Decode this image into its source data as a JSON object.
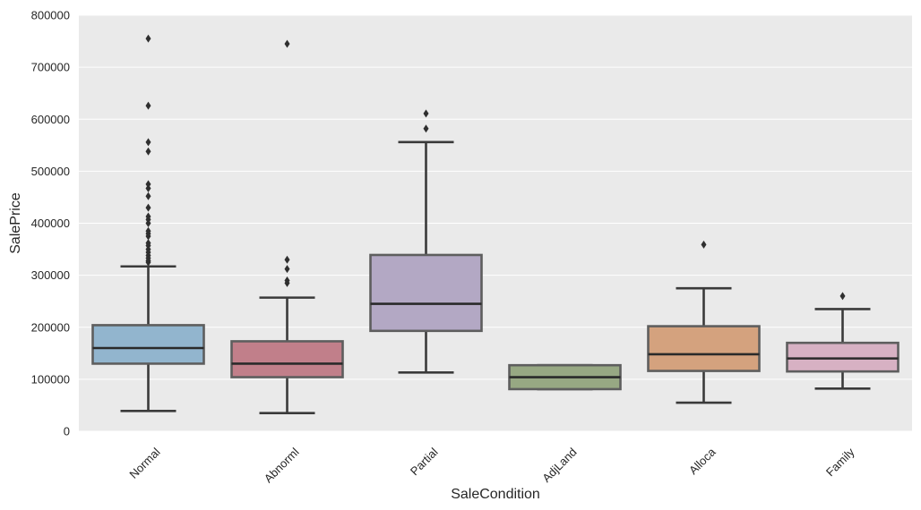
{
  "chart_data": {
    "type": "boxplot",
    "title": "",
    "xlabel": "SaleCondition",
    "ylabel": "SalePrice",
    "ylim": [
      0,
      800000
    ],
    "yticks": [
      0,
      100000,
      200000,
      300000,
      400000,
      500000,
      600000,
      700000,
      800000
    ],
    "ytick_labels": [
      "0",
      "100000",
      "200000",
      "300000",
      "400000",
      "500000",
      "600000",
      "700000",
      "800000"
    ],
    "grid": true,
    "categories": [
      "Normal",
      "Abnorml",
      "Partial",
      "AdjLand",
      "Alloca",
      "Family"
    ],
    "boxes": [
      {
        "category": "Normal",
        "color": "#92b5ce",
        "whisker_low": 39000,
        "q1": 130000,
        "median": 160000,
        "q3": 204000,
        "whisker_high": 317000,
        "outliers": [
          325000,
          328000,
          333000,
          338000,
          344000,
          350000,
          357000,
          362000,
          375000,
          380000,
          385000,
          400000,
          407000,
          413000,
          430000,
          452000,
          467000,
          475000,
          538000,
          556000,
          626000,
          755000
        ]
      },
      {
        "category": "Abnorml",
        "color": "#c17f8a",
        "whisker_low": 35000,
        "q1": 104000,
        "median": 130000,
        "q3": 173000,
        "whisker_high": 257000,
        "outliers": [
          285000,
          290000,
          312000,
          330000,
          745000
        ]
      },
      {
        "category": "Partial",
        "color": "#b3a8c4",
        "whisker_low": 113000,
        "q1": 193000,
        "median": 245000,
        "q3": 339000,
        "whisker_high": 556000,
        "outliers": [
          582000,
          611000
        ]
      },
      {
        "category": "AdjLand",
        "color": "#97a883",
        "whisker_low": 81000,
        "q1": 81000,
        "median": 104000,
        "q3": 127000,
        "whisker_high": 127000,
        "outliers": []
      },
      {
        "category": "Alloca",
        "color": "#d4a27e",
        "whisker_low": 55000,
        "q1": 116000,
        "median": 148000,
        "q3": 202000,
        "whisker_high": 275000,
        "outliers": [
          359000
        ]
      },
      {
        "category": "Family",
        "color": "#d7b1c3",
        "whisker_low": 82000,
        "q1": 115000,
        "median": 140000,
        "q3": 170000,
        "whisker_high": 235000,
        "outliers": [
          260000
        ]
      }
    ]
  }
}
